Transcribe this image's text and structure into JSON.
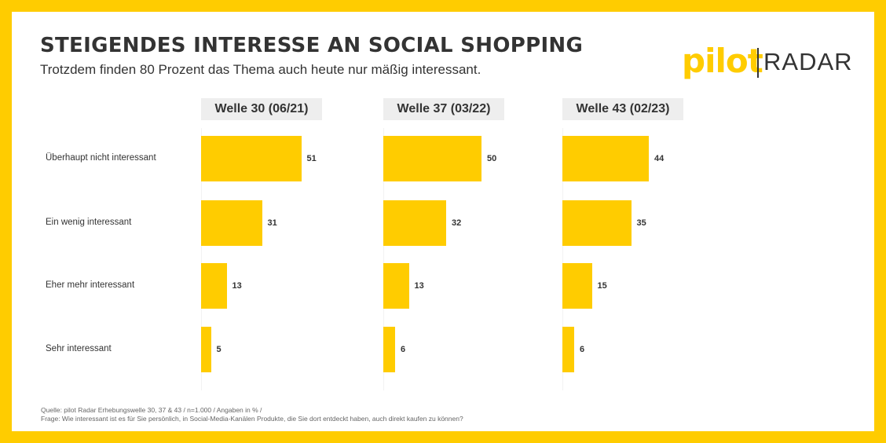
{
  "title": "STEIGENDES INTERESSE AN SOCIAL SHOPPING",
  "subtitle": "Trotzdem finden 80 Prozent das Thema auch heute nur mäßig interessant.",
  "logo": {
    "pilot": "pilot",
    "radar": "RADAR"
  },
  "colors": {
    "accent": "#FFCC00",
    "text": "#333333",
    "header_bg": "#EEEEEE"
  },
  "chart_data": {
    "type": "bar",
    "orientation": "horizontal",
    "categories": [
      "Überhaupt nicht interessant",
      "Ein wenig interessant",
      "Eher mehr interessant",
      "Sehr interessant"
    ],
    "series": [
      {
        "name": "Welle 30 (06/21)",
        "values": [
          51,
          31,
          13,
          5
        ]
      },
      {
        "name": "Welle 37 (03/22)",
        "values": [
          50,
          32,
          13,
          6
        ]
      },
      {
        "name": "Welle 43 (02/23)",
        "values": [
          44,
          35,
          15,
          6
        ]
      }
    ],
    "xlim": [
      0,
      100
    ]
  },
  "footer": {
    "source": "Quelle: pilot Radar Erhebungswelle 30, 37 & 43 / n=1.000 / Angaben in % /",
    "question": "Frage: Wie interessant ist es für Sie persönlich, in Social-Media-Kanälen Produkte, die Sie dort entdeckt haben, auch direkt kaufen zu können?"
  }
}
